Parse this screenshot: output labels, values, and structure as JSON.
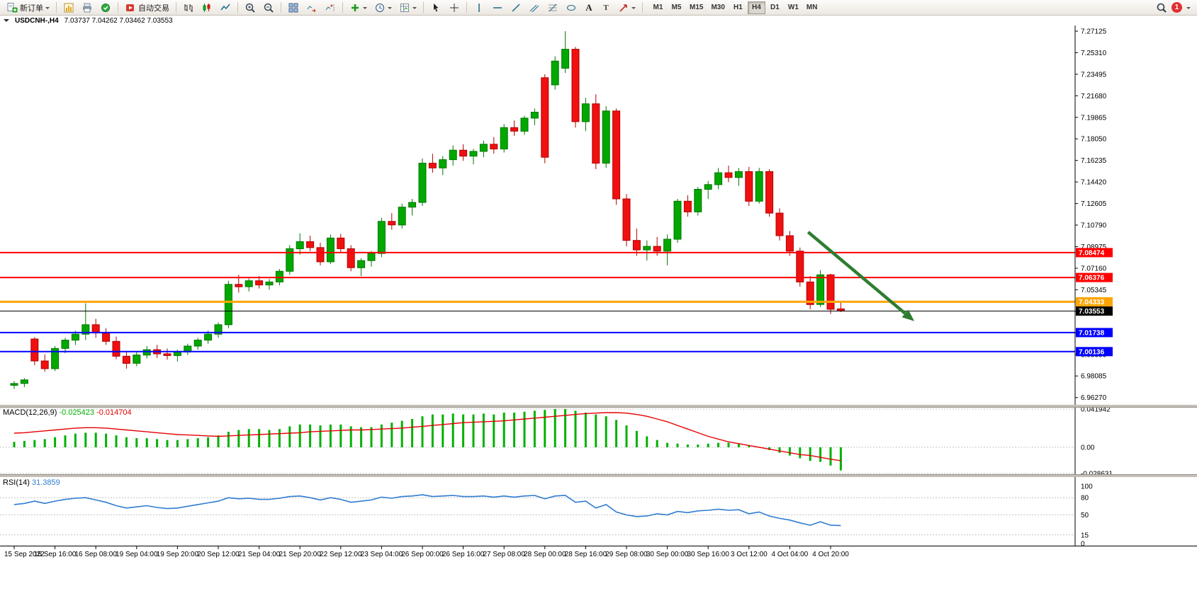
{
  "toolbar": {
    "new_order": "新订单",
    "auto_trading": "自动交易",
    "timeframes": [
      "M1",
      "M5",
      "M15",
      "M30",
      "H1",
      "H4",
      "D1",
      "W1",
      "MN"
    ],
    "active_timeframe": "H4",
    "notification_count": "1",
    "text_glyph": "A",
    "label_glyph": "T"
  },
  "chart_header": {
    "symbol": "USDCNH-,H4",
    "ohlc": "7.03737 7.04262 7.03462 7.03553"
  },
  "colors": {
    "bull": "#00A800",
    "bull_dark": "#007600",
    "bear": "#F01010",
    "bear_dark": "#B00000",
    "macd": "#00B000",
    "signal": "#E60000",
    "rsi": "#2F7CD0",
    "arrow": "#2E7D32"
  },
  "chart_data": {
    "type": "candlestick",
    "symbol": "USDCNH",
    "timeframe": "H4",
    "price_axis_labels": [
      "7.27125",
      "7.25310",
      "7.23495",
      "7.21680",
      "7.19865",
      "7.18050",
      "7.16235",
      "7.14420",
      "7.12605",
      "7.10790",
      "7.08975",
      "7.07160",
      "7.05345",
      "7.03530",
      "7.01715",
      "6.99900",
      "6.98085",
      "6.96270"
    ],
    "hlines": [
      {
        "price": 7.08474,
        "color": "#FF0000",
        "width": 2,
        "label": "7.08474"
      },
      {
        "price": 7.06376,
        "color": "#FF0000",
        "width": 2,
        "label": "7.06376"
      },
      {
        "price": 7.04333,
        "color": "#FFA500",
        "width": 3,
        "label": "7.04333"
      },
      {
        "price": 7.03553,
        "color": "#000000",
        "width": 1,
        "label": "7.03553"
      },
      {
        "price": 7.01738,
        "color": "#0000FF",
        "width": 2,
        "label": "7.01738"
      },
      {
        "price": 7.00136,
        "color": "#0000FF",
        "width": 2,
        "label": "7.00136"
      }
    ],
    "trend_arrow": {
      "from_bar": 77.8,
      "from_price": 7.102,
      "to_bar": 88.2,
      "to_price": 7.027,
      "color": "#2E7D32"
    },
    "candles": [
      [
        6.973,
        6.9765,
        6.97,
        6.9745
      ],
      [
        6.9745,
        6.979,
        6.9715,
        6.9775
      ],
      [
        7.012,
        7.0135,
        6.99,
        6.9935
      ],
      [
        6.9935,
        6.999,
        6.9845,
        6.987
      ],
      [
        6.987,
        7.006,
        6.985,
        7.004
      ],
      [
        7.004,
        7.013,
        7.0,
        7.011
      ],
      [
        7.011,
        7.019,
        7.007,
        7.016
      ],
      [
        7.016,
        7.042,
        7.011,
        7.024
      ],
      [
        7.024,
        7.029,
        7.013,
        7.017
      ],
      [
        7.017,
        7.021,
        7.007,
        7.01
      ],
      [
        7.01,
        7.014,
        6.995,
        6.9975
      ],
      [
        6.9975,
        7.001,
        6.987,
        6.9915
      ],
      [
        6.9915,
        7.001,
        6.989,
        6.9985
      ],
      [
        6.9985,
        7.006,
        6.9955,
        7.003
      ],
      [
        7.003,
        7.007,
        6.996,
        6.9995
      ],
      [
        6.9995,
        7.004,
        6.9945,
        6.998
      ],
      [
        6.998,
        7.003,
        6.993,
        7.001
      ],
      [
        7.001,
        7.008,
        6.9985,
        7.006
      ],
      [
        7.006,
        7.013,
        7.003,
        7.011
      ],
      [
        7.011,
        7.019,
        7.008,
        7.016
      ],
      [
        7.016,
        7.026,
        7.013,
        7.024
      ],
      [
        7.024,
        7.061,
        7.021,
        7.058
      ],
      [
        7.058,
        7.066,
        7.051,
        7.056
      ],
      [
        7.056,
        7.063,
        7.052,
        7.061
      ],
      [
        7.061,
        7.065,
        7.0545,
        7.0575
      ],
      [
        7.0575,
        7.0625,
        7.0535,
        7.06
      ],
      [
        7.06,
        7.071,
        7.057,
        7.069
      ],
      [
        7.069,
        7.091,
        7.066,
        7.088
      ],
      [
        7.088,
        7.101,
        7.083,
        7.094
      ],
      [
        7.094,
        7.099,
        7.086,
        7.089
      ],
      [
        7.089,
        7.093,
        7.074,
        7.077
      ],
      [
        7.077,
        7.1,
        7.075,
        7.097
      ],
      [
        7.097,
        7.1005,
        7.085,
        7.088
      ],
      [
        7.088,
        7.091,
        7.069,
        7.072
      ],
      [
        7.072,
        7.08,
        7.065,
        7.078
      ],
      [
        7.078,
        7.086,
        7.073,
        7.084
      ],
      [
        7.084,
        7.114,
        7.081,
        7.111
      ],
      [
        7.111,
        7.118,
        7.104,
        7.108
      ],
      [
        7.108,
        7.126,
        7.105,
        7.123
      ],
      [
        7.123,
        7.13,
        7.116,
        7.127
      ],
      [
        7.127,
        7.164,
        7.124,
        7.16
      ],
      [
        7.16,
        7.168,
        7.152,
        7.156
      ],
      [
        7.156,
        7.166,
        7.15,
        7.163
      ],
      [
        7.163,
        7.175,
        7.158,
        7.171
      ],
      [
        7.171,
        7.176,
        7.162,
        7.166
      ],
      [
        7.166,
        7.172,
        7.159,
        7.17
      ],
      [
        7.17,
        7.179,
        7.165,
        7.176
      ],
      [
        7.176,
        7.182,
        7.168,
        7.172
      ],
      [
        7.172,
        7.193,
        7.169,
        7.19
      ],
      [
        7.19,
        7.196,
        7.183,
        7.187
      ],
      [
        7.187,
        7.2,
        7.184,
        7.198
      ],
      [
        7.198,
        7.206,
        7.192,
        7.203
      ],
      [
        7.232,
        7.235,
        7.16,
        7.165
      ],
      [
        7.226,
        7.25,
        7.222,
        7.246
      ],
      [
        7.24,
        7.2712,
        7.236,
        7.256
      ],
      [
        7.256,
        7.258,
        7.19,
        7.195
      ],
      [
        7.195,
        7.215,
        7.187,
        7.21
      ],
      [
        7.21,
        7.218,
        7.155,
        7.16
      ],
      [
        7.16,
        7.208,
        7.156,
        7.204
      ],
      [
        7.204,
        7.206,
        7.125,
        7.13
      ],
      [
        7.13,
        7.134,
        7.09,
        7.095
      ],
      [
        7.095,
        7.105,
        7.082,
        7.087
      ],
      [
        7.087,
        7.095,
        7.078,
        7.09
      ],
      [
        7.09,
        7.098,
        7.082,
        7.086
      ],
      [
        7.086,
        7.1,
        7.074,
        7.096
      ],
      [
        7.096,
        7.13,
        7.093,
        7.128
      ],
      [
        7.128,
        7.133,
        7.115,
        7.119
      ],
      [
        7.119,
        7.14,
        7.116,
        7.138
      ],
      [
        7.138,
        7.145,
        7.13,
        7.142
      ],
      [
        7.142,
        7.156,
        7.138,
        7.152
      ],
      [
        7.152,
        7.158,
        7.144,
        7.148
      ],
      [
        7.148,
        7.156,
        7.141,
        7.153
      ],
      [
        7.153,
        7.157,
        7.124,
        7.128
      ],
      [
        7.128,
        7.156,
        7.126,
        7.153
      ],
      [
        7.153,
        7.155,
        7.115,
        7.118
      ],
      [
        7.118,
        7.122,
        7.095,
        7.099
      ],
      [
        7.099,
        7.103,
        7.082,
        7.086
      ],
      [
        7.086,
        7.089,
        7.056,
        7.06
      ],
      [
        7.06,
        7.065,
        7.037,
        7.041
      ],
      [
        7.041,
        7.07,
        7.039,
        7.066
      ],
      [
        7.066,
        7.067,
        7.033,
        7.037
      ],
      [
        7.03737,
        7.04262,
        7.03462,
        7.03553
      ]
    ],
    "macd": {
      "name": "MACD(12,26,9)",
      "value_main": "-0.025423",
      "value_signal": "-0.014704",
      "axis_labels": [
        "0.041942",
        "0.00",
        "-0.028631"
      ],
      "levels": [
        0.041942,
        0,
        -0.028631
      ],
      "histogram": [
        0.006,
        0.007,
        0.008,
        0.009,
        0.011,
        0.013,
        0.015,
        0.016,
        0.016,
        0.015,
        0.013,
        0.011,
        0.01,
        0.01,
        0.009,
        0.008,
        0.008,
        0.009,
        0.01,
        0.011,
        0.013,
        0.017,
        0.019,
        0.02,
        0.02,
        0.019,
        0.02,
        0.023,
        0.025,
        0.025,
        0.024,
        0.025,
        0.025,
        0.023,
        0.022,
        0.022,
        0.025,
        0.027,
        0.029,
        0.031,
        0.034,
        0.036,
        0.036,
        0.037,
        0.036,
        0.036,
        0.037,
        0.036,
        0.038,
        0.038,
        0.039,
        0.04,
        0.041,
        0.0419,
        0.042,
        0.04,
        0.038,
        0.036,
        0.034,
        0.03,
        0.024,
        0.018,
        0.012,
        0.008,
        0.005,
        0.004,
        0.003,
        0.003,
        0.004,
        0.005,
        0.005,
        0.004,
        0.002,
        0.0,
        -0.003,
        -0.006,
        -0.009,
        -0.012,
        -0.015,
        -0.016,
        -0.02,
        -0.0254
      ],
      "signal": [
        0.0155,
        0.016,
        0.017,
        0.018,
        0.019,
        0.02,
        0.021,
        0.0215,
        0.0215,
        0.021,
        0.02,
        0.019,
        0.018,
        0.017,
        0.016,
        0.015,
        0.014,
        0.0135,
        0.013,
        0.0125,
        0.012,
        0.0125,
        0.013,
        0.0135,
        0.014,
        0.0145,
        0.015,
        0.0155,
        0.016,
        0.017,
        0.0175,
        0.018,
        0.0185,
        0.019,
        0.019,
        0.0195,
        0.02,
        0.0205,
        0.021,
        0.022,
        0.023,
        0.024,
        0.025,
        0.026,
        0.027,
        0.0275,
        0.028,
        0.0285,
        0.029,
        0.03,
        0.031,
        0.032,
        0.033,
        0.034,
        0.035,
        0.036,
        0.037,
        0.0375,
        0.038,
        0.038,
        0.0375,
        0.036,
        0.034,
        0.031,
        0.028,
        0.024,
        0.02,
        0.016,
        0.012,
        0.009,
        0.006,
        0.004,
        0.002,
        0.0,
        -0.002,
        -0.004,
        -0.006,
        -0.008,
        -0.009,
        -0.011,
        -0.013,
        -0.0147
      ]
    },
    "rsi": {
      "name": "RSI(14)",
      "value": "31.3859",
      "axis_labels": [
        "100",
        "80",
        "50",
        "15",
        "0"
      ],
      "levels": [
        80,
        50,
        15
      ],
      "values": [
        68,
        70,
        74,
        70,
        74,
        77,
        79,
        80,
        76,
        72,
        66,
        62,
        64,
        66,
        63,
        61,
        62,
        65,
        68,
        71,
        74,
        80,
        78,
        79,
        77,
        77,
        79,
        82,
        83,
        80,
        76,
        80,
        77,
        72,
        74,
        76,
        81,
        79,
        82,
        83,
        85,
        82,
        83,
        84,
        82,
        82,
        83,
        81,
        83,
        81,
        83,
        84,
        78,
        83,
        84,
        72,
        74,
        62,
        68,
        55,
        50,
        47,
        48,
        52,
        50,
        56,
        54,
        57,
        58,
        60,
        58,
        59,
        52,
        55,
        48,
        44,
        41,
        36,
        32,
        38,
        32,
        31.39
      ]
    },
    "time_labels": [
      "15 Sep 2022",
      "15 Sep 16:00",
      "16 Sep 08:00",
      "19 Sep 04:00",
      "19 Sep 20:00",
      "20 Sep 12:00",
      "21 Sep 04:00",
      "21 Sep 20:00",
      "22 Sep 12:00",
      "23 Sep 04:00",
      "26 Sep 00:00",
      "26 Sep 16:00",
      "27 Sep 08:00",
      "28 Sep 00:00",
      "28 Sep 16:00",
      "29 Sep 08:00",
      "30 Sep 00:00",
      "30 Sep 16:00",
      "3 Oct 12:00",
      "4 Oct 04:00",
      "4 Oct 20:00"
    ]
  }
}
